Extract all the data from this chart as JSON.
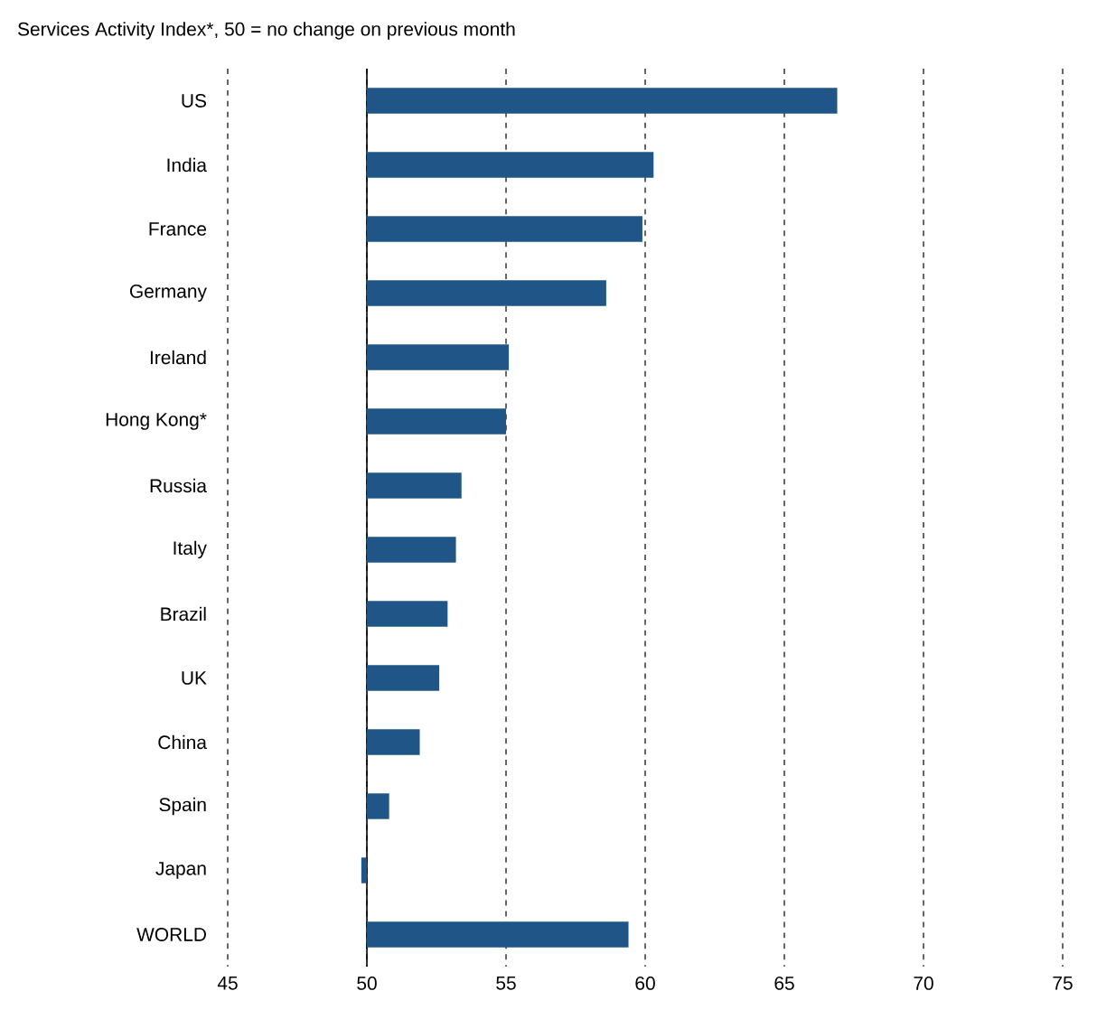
{
  "chart_data": {
    "type": "bar",
    "orientation": "horizontal",
    "title": "Services Activity Index*, 50 = no change on previous month",
    "categories": [
      "US",
      "India",
      "France",
      "Germany",
      "Ireland",
      "Hong Kong*",
      "Russia",
      "Italy",
      "Brazil",
      "UK",
      "China",
      "Spain",
      "Japan",
      "WORLD"
    ],
    "base": [
      50,
      50,
      50,
      50,
      50,
      50,
      50,
      50,
      50,
      50,
      50,
      50,
      50,
      50
    ],
    "values": [
      16.9,
      10.3,
      9.9,
      8.6,
      5.1,
      5.0,
      3.4,
      3.2,
      2.9,
      2.6,
      1.9,
      0.8,
      -0.2,
      9.4
    ],
    "color": "#1f5687",
    "xlim": [
      45,
      75
    ],
    "xticks": [
      45,
      50,
      55,
      60,
      65,
      70,
      75
    ],
    "grid": "x",
    "ref_lines": [
      {
        "axis": "x",
        "value": 50,
        "line_style": "solid"
      }
    ]
  }
}
